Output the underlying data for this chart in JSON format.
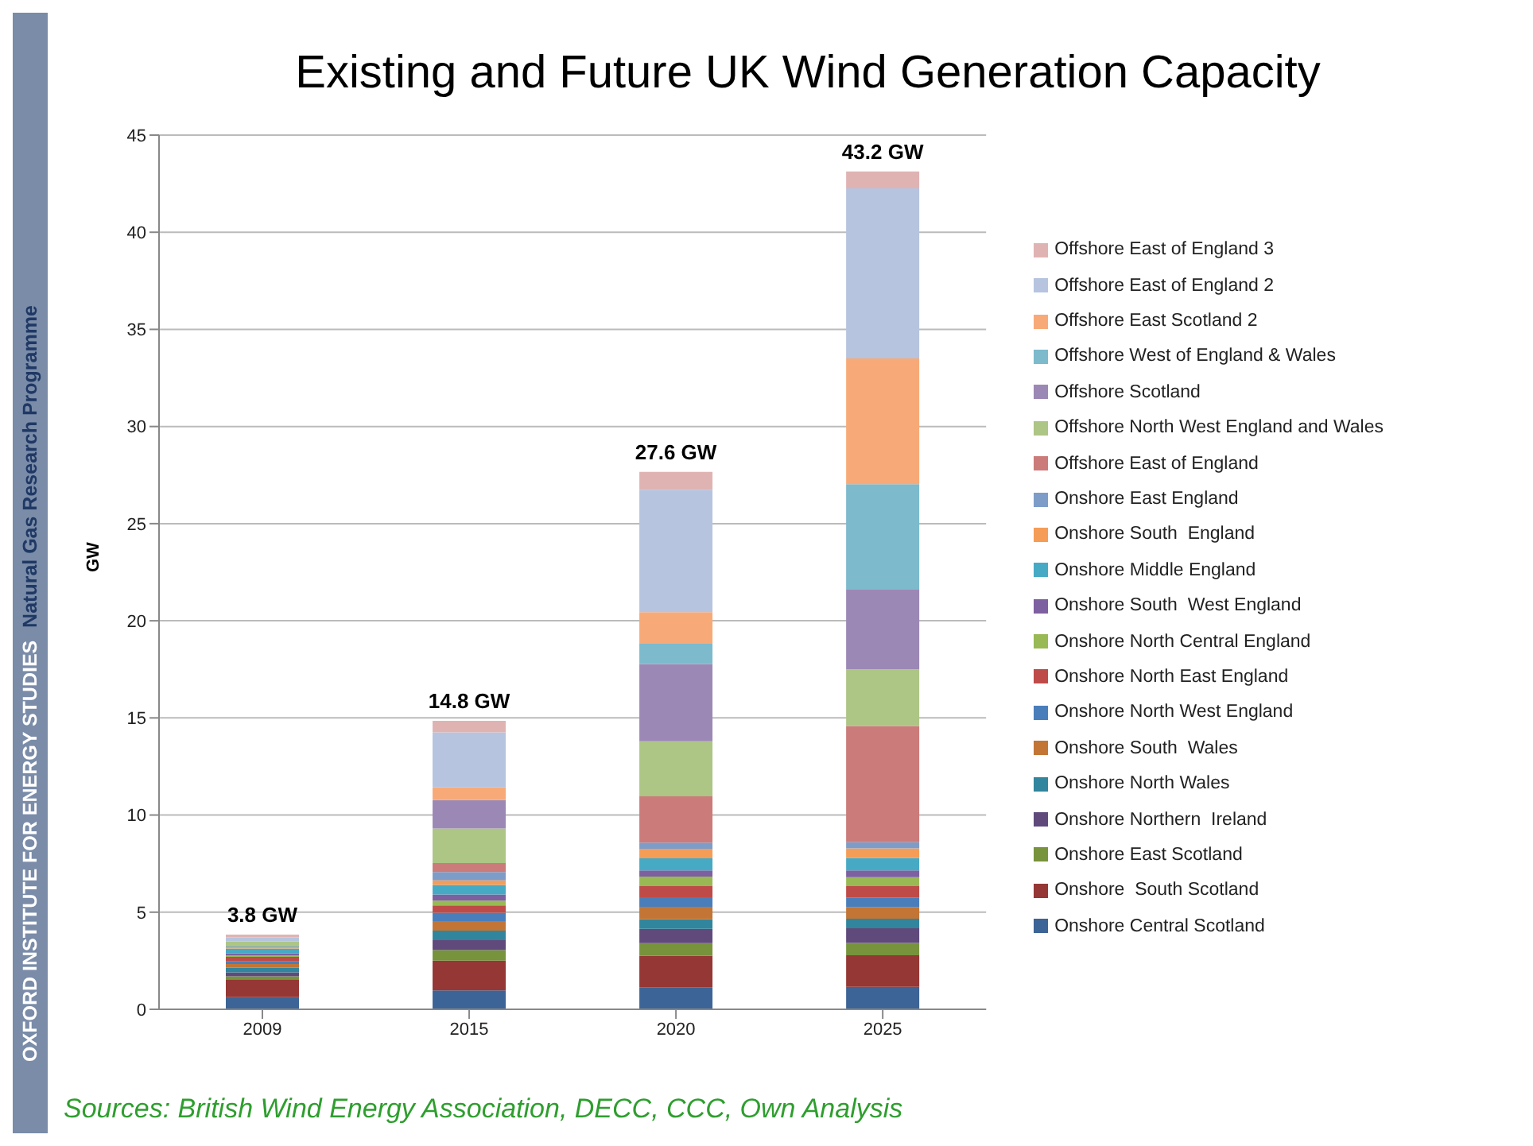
{
  "chart_data": {
    "type": "bar",
    "title": "Existing and Future UK Wind Generation Capacity",
    "ylabel": "GW",
    "categories": [
      "2009",
      "2015",
      "2020",
      "2025"
    ],
    "stacked": true,
    "ylim": [
      0,
      45
    ],
    "yticks": [
      0,
      5,
      10,
      15,
      20,
      25,
      30,
      35,
      40,
      45
    ],
    "grid": "y",
    "legend": "right",
    "totals": [
      "3.8 GW",
      "14.8 GW",
      "27.6 GW",
      "43.2 GW"
    ],
    "annotations": [
      "OXFORD INSTITUTE FOR ENERGY STUDIES",
      "Natural Gas Research Programme",
      "Sources: British Wind Energy Association, DECC, CCC, Own Analysis"
    ],
    "series": [
      {
        "name": "Onshore Central Scotland",
        "color": "#3c6496",
        "values": [
          0.62,
          0.97,
          1.14,
          1.16
        ]
      },
      {
        "name": "Onshore  South Scotland",
        "color": "#953735",
        "values": [
          0.92,
          1.54,
          1.62,
          1.62
        ]
      },
      {
        "name": "Onshore East Scotland",
        "color": "#77933c",
        "values": [
          0.16,
          0.54,
          0.65,
          0.64
        ]
      },
      {
        "name": "Onshore Northern  Ireland",
        "color": "#604a7b",
        "values": [
          0.2,
          0.51,
          0.73,
          0.75
        ]
      },
      {
        "name": "Onshore North Wales",
        "color": "#31859c",
        "values": [
          0.24,
          0.49,
          0.49,
          0.49
        ]
      },
      {
        "name": "Onshore South  Wales",
        "color": "#c27535",
        "values": [
          0.19,
          0.49,
          0.65,
          0.61
        ]
      },
      {
        "name": "Onshore North West England",
        "color": "#4a7ebb",
        "values": [
          0.13,
          0.43,
          0.49,
          0.49
        ]
      },
      {
        "name": "Onshore North East England",
        "color": "#be4b48",
        "values": [
          0.24,
          0.38,
          0.57,
          0.58
        ]
      },
      {
        "name": "Onshore North Central England",
        "color": "#98b954",
        "values": [
          0.08,
          0.24,
          0.49,
          0.46
        ]
      },
      {
        "name": "Onshore South  West England",
        "color": "#7d60a0",
        "values": [
          0.1,
          0.32,
          0.32,
          0.35
        ]
      },
      {
        "name": "Onshore Middle England",
        "color": "#46aac5",
        "values": [
          0.25,
          0.49,
          0.62,
          0.64
        ]
      },
      {
        "name": "Onshore South  England",
        "color": "#f59d56",
        "values": [
          0.05,
          0.24,
          0.49,
          0.49
        ]
      },
      {
        "name": "Onshore East England",
        "color": "#7e9cc8",
        "values": [
          0.05,
          0.43,
          0.32,
          0.32
        ]
      },
      {
        "name": "Offshore East of England",
        "color": "#cb7b7a",
        "values": [
          0,
          0.46,
          2.38,
          5.98
        ]
      },
      {
        "name": "Offshore North West England and Wales",
        "color": "#adc585",
        "values": [
          0.27,
          1.78,
          2.84,
          2.92
        ]
      },
      {
        "name": "Offshore Scotland",
        "color": "#9c88b4",
        "values": [
          0,
          1.46,
          3.97,
          4.1
        ]
      },
      {
        "name": "Offshore West of England & Wales",
        "color": "#7cbacc",
        "values": [
          0,
          0,
          1.05,
          5.43
        ]
      },
      {
        "name": "Offshore East Scotland 2",
        "color": "#f7aa78",
        "values": [
          0,
          0.65,
          1.62,
          6.47
        ]
      },
      {
        "name": "Offshore East of England 2",
        "color": "#b6c4df",
        "values": [
          0.2,
          2.84,
          6.3,
          8.76
        ]
      },
      {
        "name": "Offshore East of England 3",
        "color": "#e0b3b3",
        "values": [
          0.15,
          0.59,
          0.92,
          0.87
        ]
      }
    ]
  }
}
